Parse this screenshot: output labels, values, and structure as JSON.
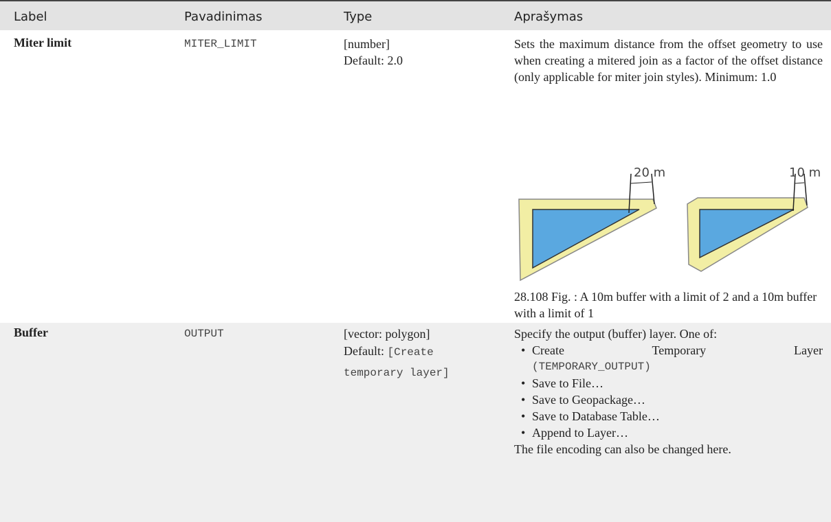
{
  "table": {
    "header": [
      "Label",
      "Pavadinimas",
      "Type",
      "Aprašymas"
    ],
    "rows": [
      {
        "label": "Miter limit",
        "name": "MITER_LIMIT",
        "type": [
          "[number]",
          "Default: 2.0"
        ],
        "description": "Sets the maximum distance from the offset geometry to use when creating a mitered join as a factor of the offset distance (only applicable for miter join styles). Minimum: 1.0",
        "figure": {
          "labels": [
            "20 m",
            "10 m"
          ],
          "caption": "28.108 Fig. : A 10m buffer with a limit of 2 and a 10m buffer with a limit of 1"
        }
      },
      {
        "label": "Buffer",
        "name": "OUTPUT",
        "type": [
          "[vector: polygon]",
          "Default:",
          "[Create temporary layer]"
        ],
        "description": "Specify the output (buffer) layer. One of:",
        "options": [
          [
            "Create Temporary Layer",
            "(TEMPORARY_OUTPUT)"
          ],
          [
            "Save to File…"
          ],
          [
            "Save to Geopackage…"
          ],
          [
            "Save to Database Table…"
          ],
          [
            "Append to Layer…"
          ]
        ],
        "note": "The file encoding can also be changed here."
      }
    ]
  }
}
